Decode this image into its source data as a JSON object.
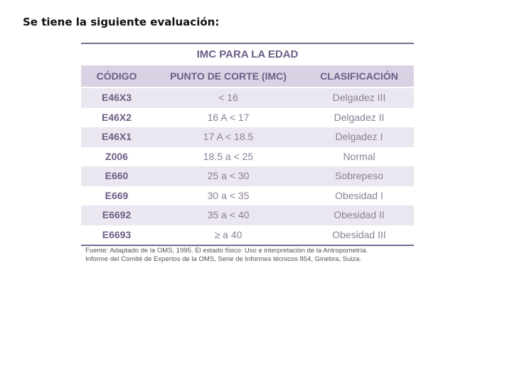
{
  "intro_text": "Se tiene la siguiente evaluación:",
  "table": {
    "title": "IMC PARA LA EDAD",
    "headers": [
      "CÓDIGO",
      "PUNTO DE CORTE (IMC)",
      "CLASIFICACIÓN"
    ],
    "rows": [
      [
        "E46X3",
        "< 16",
        "Delgadez III"
      ],
      [
        "E46X2",
        "16 A < 17",
        "Delgadez II"
      ],
      [
        "E46X1",
        "17 A < 18.5",
        "Delgadez I"
      ],
      [
        "Z006",
        "18.5 a < 25",
        "Normal"
      ],
      [
        "E660",
        "25 a < 30",
        "Sobrepeso"
      ],
      [
        "E669",
        "30 a < 35",
        "Obesidad I"
      ],
      [
        "E6692",
        "35 a < 40",
        "Obesidad II"
      ],
      [
        "E6693",
        "≥ a 40",
        "Obesidad III"
      ]
    ],
    "source_line1": "Fuente: Adaptado de la OMS, 1995. El estado físico: Uso e interpretación de la Antropometría.",
    "source_line2": "Informe del Comité de Expertos de la OMS, Serie de Informes técnicos 854, Ginebra, Suiza."
  },
  "colors": {
    "header_text": "#6d5e86",
    "header_bg": "#d9d2e4",
    "stripe_bg": "#ebe7f0",
    "rule": "#7a6a93"
  }
}
